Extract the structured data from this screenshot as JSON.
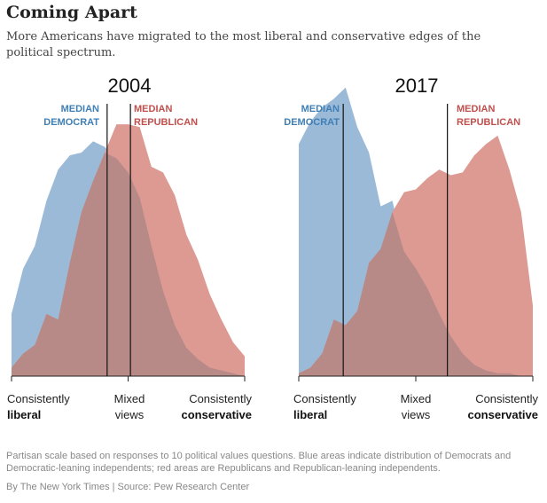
{
  "header": {
    "title": "Coming Apart",
    "subtitle": "More Americans have migrated to the most liberal and conservative edges of the political spectrum."
  },
  "colors": {
    "democrat": "#9bbad8",
    "republican": "#dd9a93",
    "overlap": "#b78a87",
    "dem_label": "#3f7fb5",
    "rep_label": "#c0504d"
  },
  "labels": {
    "median_dem_1": "MEDIAN",
    "median_dem_2": "DEMOCRAT",
    "median_rep_1": "MEDIAN",
    "median_rep_2": "REPUBLICAN",
    "left_1": "Consistently",
    "left_2": "liberal",
    "mid_1": "Mixed",
    "mid_2": "views",
    "right_1": "Consistently",
    "right_2": "conservative"
  },
  "chart_data": [
    {
      "type": "area",
      "title": "2004",
      "x": [
        0,
        1,
        2,
        3,
        4,
        5,
        6,
        7,
        8,
        9,
        10,
        11,
        12,
        13,
        14,
        15,
        16,
        17,
        18,
        19,
        20
      ],
      "xlim": [
        0,
        20
      ],
      "series": [
        {
          "name": "Democrats",
          "values": [
            22,
            38,
            46,
            62,
            73,
            78,
            79,
            83,
            81,
            77,
            72,
            63,
            46,
            30,
            18,
            10,
            6,
            3,
            2,
            1,
            0
          ]
        },
        {
          "name": "Republicans",
          "values": [
            3,
            8,
            11,
            22,
            20,
            40,
            58,
            69,
            79,
            89,
            89,
            88,
            74,
            72,
            64,
            50,
            41,
            29,
            20,
            12,
            7
          ]
        }
      ],
      "median_democrat": 8.2,
      "median_republican": 10.2,
      "ylim": [
        0,
        100
      ]
    },
    {
      "type": "area",
      "title": "2017",
      "x": [
        0,
        1,
        2,
        3,
        4,
        5,
        6,
        7,
        8,
        9,
        10,
        11,
        12,
        13,
        14,
        15,
        16,
        17,
        18,
        19,
        20
      ],
      "xlim": [
        0,
        20
      ],
      "series": [
        {
          "name": "Democrats",
          "values": [
            82,
            90,
            95,
            98,
            102,
            88,
            79,
            60,
            62,
            44,
            38,
            31,
            22,
            14,
            8,
            4,
            2,
            1,
            1,
            0,
            0
          ]
        },
        {
          "name": "Republicans",
          "values": [
            1,
            3,
            8,
            20,
            18,
            23,
            40,
            45,
            58,
            65,
            66,
            70,
            73,
            71,
            72,
            78,
            82,
            85,
            73,
            58,
            25
          ]
        }
      ],
      "median_democrat": 3.8,
      "median_republican": 12.7,
      "ylim": [
        0,
        100
      ]
    }
  ],
  "footer": {
    "note": "Partisan scale based on responses to 10 political values questions. Blue areas indicate distribution of Democrats and Democratic-leaning independents; red areas are Republicans and Republican-leaning independents.",
    "source": "By The New York Times | Source: Pew Research Center"
  }
}
